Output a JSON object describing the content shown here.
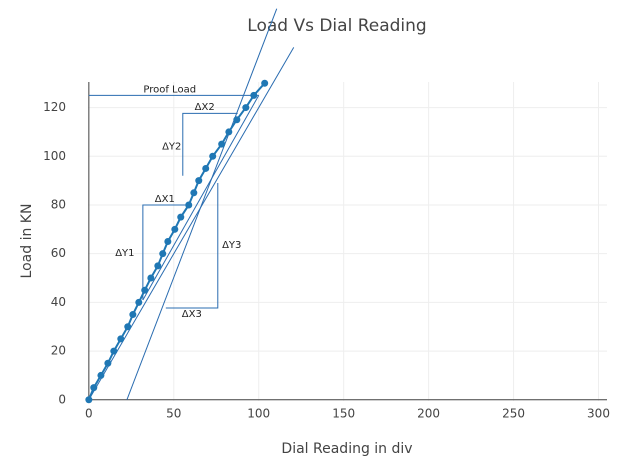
{
  "chart_data": {
    "type": "scatter",
    "title": "Load Vs Dial Reading",
    "x_label": "Dial Reading in div",
    "y_label": "Load in KN",
    "xlim": [
      -0.5,
      305
    ],
    "ylim": [
      -0.5,
      130.5
    ],
    "xticks": [
      0,
      50,
      100,
      150,
      200,
      250,
      300
    ],
    "yticks": [
      0,
      20,
      40,
      60,
      80,
      100,
      120
    ],
    "grid": true,
    "series": [
      {
        "color": "#1f77b4",
        "x": [
          0,
          2.9,
          7.1,
          11.2,
          14.7,
          18.8,
          22.9,
          25.9,
          29.4,
          32.9,
          36.5,
          40.6,
          43.5,
          46.5,
          50.6,
          54.1,
          58.8,
          61.8,
          64.7,
          68.8,
          72.9,
          78.2,
          82.4,
          87.1,
          92.4,
          97.1,
          103.5
        ],
        "values": [
          0,
          5,
          10,
          15,
          20,
          25,
          30,
          35,
          40,
          45,
          50,
          55,
          60,
          65,
          70,
          75,
          80,
          85,
          90,
          95,
          100,
          105,
          110,
          115,
          120,
          125,
          130
        ]
      }
    ],
    "shape_color": "#2a6cb0",
    "shapes": [
      {
        "x": [
          0,
          100
        ],
        "y": [
          125,
          125
        ]
      },
      {
        "x": [
          0,
          120.6
        ],
        "y": [
          0,
          144.7
        ]
      },
      {
        "x": [
          22.4,
          110.6
        ],
        "y": [
          0,
          160.6
        ]
      },
      {
        "x": [
          31.8,
          100
        ],
        "y": [
          41,
          125
        ]
      },
      {
        "x": [
          59.4,
          31.8,
          31.8
        ],
        "y": [
          80,
          80,
          41
        ]
      },
      {
        "x": [
          87.6,
          55.3,
          55.3
        ],
        "y": [
          117.6,
          117.6,
          92
        ]
      },
      {
        "x": [
          45.3,
          75.9,
          75.9
        ],
        "y": [
          37.7,
          37.7,
          89
        ]
      }
    ],
    "annotations": [
      {
        "text": "Proof Load",
        "x": 47.6,
        "y": 127.5
      },
      {
        "text": "ΔX2",
        "x": 68.2,
        "y": 120.3
      },
      {
        "text": "ΔY2",
        "x": 48.8,
        "y": 104
      },
      {
        "text": "ΔX1",
        "x": 44.7,
        "y": 82.4
      },
      {
        "text": "ΔY1",
        "x": 21.2,
        "y": 60.2
      },
      {
        "text": "ΔY3",
        "x": 84.1,
        "y": 63.5
      },
      {
        "text": "ΔX3",
        "x": 60.6,
        "y": 35.2
      }
    ]
  }
}
